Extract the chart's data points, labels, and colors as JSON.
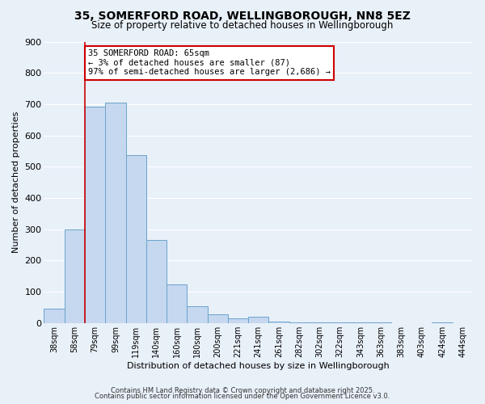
{
  "title": "35, SOMERFORD ROAD, WELLINGBOROUGH, NN8 5EZ",
  "subtitle": "Size of property relative to detached houses in Wellingborough",
  "xlabel": "Distribution of detached houses by size in Wellingborough",
  "ylabel": "Number of detached properties",
  "bar_labels": [
    "38sqm",
    "58sqm",
    "79sqm",
    "99sqm",
    "119sqm",
    "140sqm",
    "160sqm",
    "180sqm",
    "200sqm",
    "221sqm",
    "241sqm",
    "261sqm",
    "282sqm",
    "302sqm",
    "322sqm",
    "343sqm",
    "363sqm",
    "383sqm",
    "403sqm",
    "424sqm",
    "444sqm"
  ],
  "bar_heights": [
    47,
    300,
    693,
    706,
    537,
    265,
    124,
    54,
    27,
    14,
    20,
    4,
    2,
    3,
    1,
    1,
    1,
    0,
    0,
    1,
    0
  ],
  "bar_color": "#c5d8ef",
  "bar_edge_color": "#6aa3cc",
  "annotation_title": "35 SOMERFORD ROAD: 65sqm",
  "annotation_line1": "← 3% of detached houses are smaller (87)",
  "annotation_line2": "97% of semi-detached houses are larger (2,686) →",
  "vline_color": "#cc0000",
  "vline_position": 1.5,
  "annotation_box_color": "#ffffff",
  "annotation_box_edge": "#cc0000",
  "ylim": [
    0,
    900
  ],
  "yticks": [
    0,
    100,
    200,
    300,
    400,
    500,
    600,
    700,
    800,
    900
  ],
  "background_color": "#e8f0f8",
  "grid_color": "#ffffff",
  "footer1": "Contains HM Land Registry data © Crown copyright and database right 2025.",
  "footer2": "Contains public sector information licensed under the Open Government Licence v3.0.",
  "title_fontsize": 10,
  "subtitle_fontsize": 8.5,
  "axis_label_fontsize": 8,
  "tick_label_fontsize": 7,
  "footer_fontsize": 6
}
